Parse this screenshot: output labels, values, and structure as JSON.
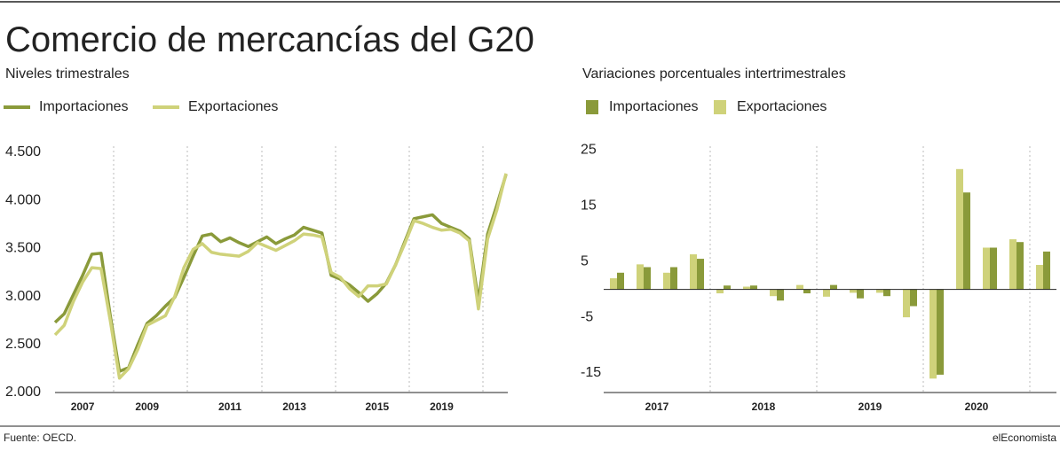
{
  "title": "Comercio de mercancías del G20",
  "source": "Fuente: OECD.",
  "brand": "elEconomista",
  "chart_data": [
    {
      "type": "line",
      "subtitle": "Niveles trimestrales",
      "categories": [
        null,
        null,
        null,
        "2007",
        null,
        null,
        null,
        null,
        null,
        null,
        "2009",
        null,
        null,
        null,
        null,
        null,
        null,
        null,
        null,
        "2011",
        null,
        null,
        null,
        null,
        null,
        null,
        "2013",
        null,
        null,
        null,
        null,
        null,
        null,
        null,
        null,
        "2015",
        null,
        null,
        null,
        null,
        null,
        null,
        "2019",
        null,
        null,
        null,
        null,
        null,
        null,
        null
      ],
      "series": [
        {
          "name": "Importaciones",
          "color": "#8a9a3a",
          "values": [
            2730,
            2820,
            3020,
            3220,
            3440,
            3450,
            2800,
            2220,
            2260,
            2500,
            2720,
            2800,
            2900,
            2990,
            3200,
            3420,
            3630,
            3650,
            3570,
            3610,
            3560,
            3520,
            3570,
            3620,
            3550,
            3600,
            3640,
            3720,
            3690,
            3660,
            3220,
            3180,
            3120,
            3040,
            2950,
            3030,
            3140,
            3330,
            3570,
            3810,
            3830,
            3850,
            3760,
            3720,
            3680,
            3600,
            2950,
            3650,
            3950,
            4270
          ]
        },
        {
          "name": "Exportaciones",
          "color": "#cfd27a",
          "values": [
            2600,
            2700,
            2950,
            3150,
            3300,
            3290,
            2750,
            2150,
            2250,
            2450,
            2700,
            2750,
            2800,
            3000,
            3300,
            3490,
            3550,
            3460,
            3440,
            3430,
            3420,
            3470,
            3560,
            3520,
            3480,
            3530,
            3580,
            3650,
            3640,
            3620,
            3250,
            3200,
            3080,
            3000,
            3110,
            3110,
            3130,
            3330,
            3550,
            3790,
            3760,
            3720,
            3690,
            3700,
            3660,
            3580,
            2870,
            3600,
            3900,
            4280
          ]
        }
      ],
      "ylim": [
        2000,
        4500
      ],
      "yticks": [
        {
          "value": 2000,
          "label": "2.000"
        },
        {
          "value": 2500,
          "label": "2.500"
        },
        {
          "value": 3000,
          "label": "3.000"
        },
        {
          "value": 3500,
          "label": "3.500"
        },
        {
          "value": 4000,
          "label": "4.000"
        },
        {
          "value": 4500,
          "label": "4.500"
        }
      ]
    },
    {
      "type": "bar",
      "subtitle": "Variaciones porcentuales intertrimestrales",
      "categories": [
        null,
        null,
        null,
        null,
        null,
        null,
        null,
        null,
        null,
        null,
        null,
        null,
        null,
        null,
        null,
        null,
        null
      ],
      "year_labels": [
        "2017",
        "2018",
        "2019",
        "2020"
      ],
      "series": [
        {
          "name": "Importaciones",
          "color": "#8a9a3a",
          "values": [
            3,
            4,
            4,
            5.5,
            0.7,
            0.7,
            -2,
            -0.7,
            0.8,
            -1.6,
            -1.2,
            -3,
            -15.3,
            17.4,
            7.5,
            8.5,
            6.8
          ]
        },
        {
          "name": "Exportaciones",
          "color": "#cfd27a",
          "values": [
            2,
            4.5,
            3,
            6.3,
            -0.7,
            0.5,
            -1.2,
            0.8,
            -1.3,
            -0.6,
            -0.6,
            -5,
            -16,
            21.6,
            7.5,
            9,
            4.4
          ]
        }
      ],
      "ylim": [
        -18.5,
        26.5
      ],
      "yticks": [
        25,
        15,
        5,
        -5,
        -15
      ]
    }
  ]
}
